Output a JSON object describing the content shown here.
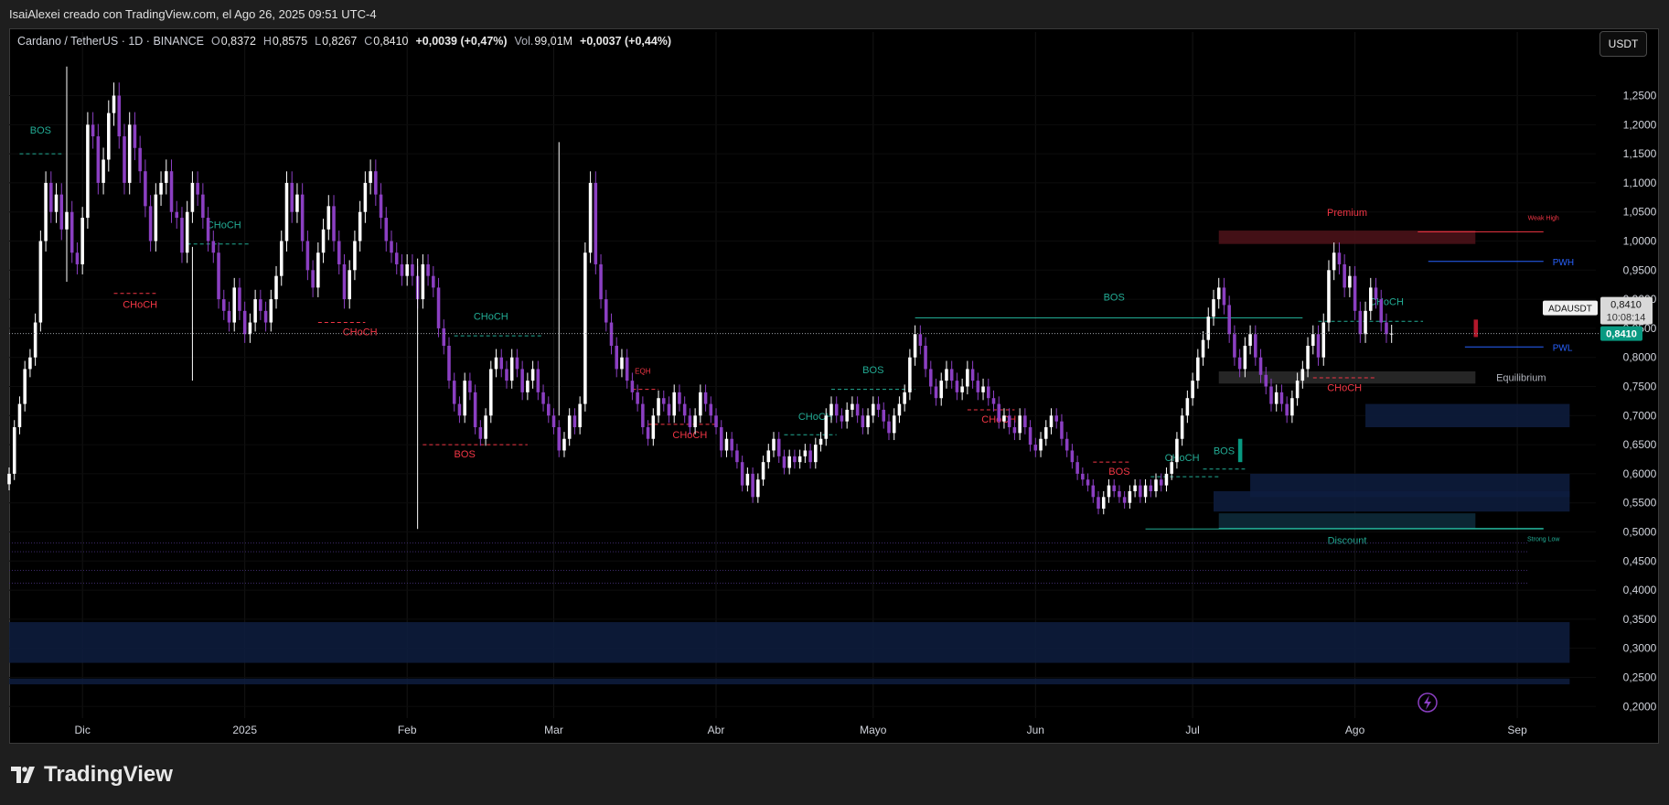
{
  "header": {
    "credit": "IsaiAlexei creado con TradingView.com, el Ago 26, 2025 09:51 UTC-4"
  },
  "legend": {
    "symbol": "Cardano / TetherUS · 1D · BINANCE",
    "open_label": "O",
    "open": "0,8372",
    "high_label": "H",
    "high": "0,8575",
    "low_label": "L",
    "low": "0,8267",
    "close_label": "C",
    "close": "0,8410",
    "change": "+0,0039 (+0,47%)",
    "vol_label": "Vol.",
    "vol": "99,01M",
    "vol_change": "+0,0037 (+0,44%)"
  },
  "currency_button": "USDT",
  "brand": "TradingView",
  "colors": {
    "candle_up": "#ffffff",
    "candle_down": "#8b3fc2",
    "bullish_label": "#22ab94",
    "bearish_label": "#f23645",
    "premium_zone": "#4a1218",
    "discount_zone": "#0d2a3a",
    "order_block": "#0e1d3f",
    "equilibrium_zone": "#2a2a2a",
    "last_price_tag": "#089981"
  },
  "price_scale": {
    "labels": [
      "1,2500",
      "1,2000",
      "1,1500",
      "1,1000",
      "1,0500",
      "1,0000",
      "0,9500",
      "0,9000",
      "0,8500",
      "0,8000",
      "0,7500",
      "0,7000",
      "0,6500",
      "0,6000",
      "0,5500",
      "0,5000",
      "0,4500",
      "0,4000",
      "0,3500",
      "0,3000",
      "0,2500",
      "0,2000"
    ],
    "last_price": "0,8410",
    "countdown": "10:08:14",
    "symbol_tag": "ADAUSDT",
    "symbol_price": "0,8410"
  },
  "time_axis": {
    "labels": [
      "Dic",
      "2025",
      "Feb",
      "Mar",
      "Abr",
      "Mayo",
      "Jun",
      "Jul",
      "Ago",
      "Sep"
    ]
  },
  "chart_data": {
    "type": "candlestick",
    "title": "Cardano / TetherUS · 1D · BINANCE",
    "ylim": [
      0.18,
      1.32
    ],
    "y_ticks": [
      1.25,
      1.2,
      1.15,
      1.1,
      1.05,
      1.0,
      0.95,
      0.9,
      0.85,
      0.8,
      0.75,
      0.7,
      0.65,
      0.6,
      0.55,
      0.5,
      0.45,
      0.4,
      0.35,
      0.3,
      0.25,
      0.2
    ],
    "x_start": "2024-11-17",
    "x_end": "2025-09-16",
    "month_ticks": [
      {
        "date": "2024-12-01",
        "label": "Dic"
      },
      {
        "date": "2025-01-01",
        "label": "2025"
      },
      {
        "date": "2025-02-01",
        "label": "Feb"
      },
      {
        "date": "2025-03-01",
        "label": "Mar"
      },
      {
        "date": "2025-04-01",
        "label": "Abr"
      },
      {
        "date": "2025-05-01",
        "label": "Mayo"
      },
      {
        "date": "2025-06-01",
        "label": "Jun"
      },
      {
        "date": "2025-07-01",
        "label": "Jul"
      },
      {
        "date": "2025-08-01",
        "label": "Ago"
      },
      {
        "date": "2025-09-01",
        "label": "Sep"
      }
    ],
    "close_series": {
      "start": "2024-11-17",
      "values": [
        0.6,
        0.68,
        0.72,
        0.78,
        0.8,
        0.86,
        1.0,
        1.1,
        1.05,
        1.08,
        1.02,
        1.05,
        0.98,
        0.96,
        1.04,
        1.2,
        1.18,
        1.1,
        1.14,
        1.22,
        1.25,
        1.18,
        1.1,
        1.2,
        1.16,
        1.12,
        1.06,
        1.0,
        1.08,
        1.1,
        1.12,
        1.05,
        1.04,
        0.98,
        1.05,
        1.1,
        1.08,
        1.04,
        1.0,
        0.98,
        0.9,
        0.88,
        0.86,
        0.92,
        0.88,
        0.84,
        0.86,
        0.9,
        0.88,
        0.86,
        0.9,
        0.94,
        1.0,
        1.1,
        1.05,
        1.08,
        1.0,
        0.95,
        0.92,
        0.98,
        1.02,
        1.06,
        1.0,
        0.96,
        0.9,
        0.95,
        1.0,
        1.05,
        1.1,
        1.12,
        1.08,
        1.04,
        1.0,
        0.98,
        0.96,
        0.94,
        0.96,
        0.94,
        0.9,
        0.96,
        0.94,
        0.92,
        0.85,
        0.82,
        0.76,
        0.72,
        0.7,
        0.76,
        0.74,
        0.68,
        0.66,
        0.7,
        0.78,
        0.8,
        0.78,
        0.76,
        0.8,
        0.78,
        0.74,
        0.76,
        0.78,
        0.74,
        0.72,
        0.7,
        0.68,
        0.64,
        0.66,
        0.7,
        0.68,
        0.72,
        0.98,
        1.1,
        0.96,
        0.9,
        0.86,
        0.82,
        0.78,
        0.8,
        0.76,
        0.74,
        0.72,
        0.68,
        0.66,
        0.7,
        0.73,
        0.72,
        0.7,
        0.74,
        0.72,
        0.7,
        0.68,
        0.7,
        0.74,
        0.72,
        0.7,
        0.68,
        0.64,
        0.66,
        0.64,
        0.62,
        0.58,
        0.6,
        0.56,
        0.59,
        0.62,
        0.64,
        0.66,
        0.63,
        0.61,
        0.63,
        0.62,
        0.63,
        0.64,
        0.62,
        0.65,
        0.66,
        0.7,
        0.72,
        0.7,
        0.69,
        0.71,
        0.72,
        0.7,
        0.68,
        0.7,
        0.72,
        0.71,
        0.69,
        0.67,
        0.7,
        0.72,
        0.74,
        0.8,
        0.84,
        0.82,
        0.78,
        0.75,
        0.73,
        0.76,
        0.78,
        0.76,
        0.74,
        0.75,
        0.78,
        0.76,
        0.74,
        0.75,
        0.73,
        0.72,
        0.69,
        0.7,
        0.68,
        0.67,
        0.7,
        0.68,
        0.65,
        0.64,
        0.66,
        0.68,
        0.7,
        0.69,
        0.66,
        0.64,
        0.62,
        0.6,
        0.59,
        0.58,
        0.56,
        0.54,
        0.56,
        0.58,
        0.57,
        0.56,
        0.55,
        0.57,
        0.58,
        0.56,
        0.58,
        0.57,
        0.59,
        0.58,
        0.6,
        0.62,
        0.66,
        0.7,
        0.73,
        0.76,
        0.8,
        0.83,
        0.87,
        0.9,
        0.92,
        0.89,
        0.84,
        0.8,
        0.78,
        0.82,
        0.84,
        0.8,
        0.77,
        0.75,
        0.72,
        0.74,
        0.72,
        0.7,
        0.73,
        0.76,
        0.78,
        0.82,
        0.84,
        0.8,
        0.86,
        0.95,
        0.98,
        0.96,
        0.92,
        0.94,
        0.88,
        0.84,
        0.88,
        0.92,
        0.9,
        0.86,
        0.84,
        0.841
      ]
    },
    "series": [
      {
        "values": []
      }
    ],
    "zones": [
      {
        "label": "Premium",
        "type": "premium",
        "from": "2025-07-06",
        "to": "2025-08-24",
        "y_low": 0.995,
        "y_high": 1.018
      },
      {
        "label": "Equilibrium",
        "type": "equilibrium",
        "from": "2025-07-06",
        "to": "2025-08-24",
        "y_low": 0.755,
        "y_high": 0.776
      },
      {
        "label": "Discount",
        "type": "discount",
        "from": "2025-07-06",
        "to": "2025-08-24",
        "y_low": 0.506,
        "y_high": 0.532
      },
      {
        "label": "",
        "type": "orderblock",
        "from": "2025-08-03",
        "to": "2025-09-11",
        "y_low": 0.68,
        "y_high": 0.72
      },
      {
        "label": "",
        "type": "orderblock",
        "from": "2025-07-12",
        "to": "2025-09-11",
        "y_low": 0.56,
        "y_high": 0.6
      },
      {
        "label": "",
        "type": "orderblock",
        "from": "2025-07-05",
        "to": "2025-09-11",
        "y_low": 0.535,
        "y_high": 0.57
      },
      {
        "label": "",
        "type": "orderblock",
        "from": "2024-11-17",
        "to": "2025-09-11",
        "y_low": 0.275,
        "y_high": 0.345
      },
      {
        "label": "",
        "type": "orderblock",
        "from": "2024-11-17",
        "to": "2025-09-11",
        "y_low": 0.238,
        "y_high": 0.248
      }
    ],
    "levels": [
      {
        "label": "Weak High",
        "value": 1.016,
        "from": "2025-08-13",
        "to": "2025-09-06",
        "color": "#f23645"
      },
      {
        "label": "PWH",
        "value": 0.965,
        "from": "2025-08-15",
        "to": "2025-09-06",
        "color": "#2962ff"
      },
      {
        "label": "PWL",
        "value": 0.818,
        "from": "2025-08-22",
        "to": "2025-09-06",
        "color": "#2962ff"
      },
      {
        "label": "Strong Low",
        "value": 0.505,
        "from": "2025-06-22",
        "to": "2025-09-06",
        "color": "#22ab94"
      }
    ],
    "structure": [
      {
        "label": "BOS",
        "type": "bull",
        "from": "2024-11-19",
        "to": "2024-11-27",
        "y": 1.15,
        "text_date": "2024-11-23",
        "text_y": 1.185
      },
      {
        "label": "CHoCH",
        "type": "bear",
        "from": "2024-12-07",
        "to": "2024-12-15",
        "y": 0.91,
        "text_date": "2024-12-12",
        "text_y": 0.885
      },
      {
        "label": "CHoCH",
        "type": "bull",
        "from": "2024-12-21",
        "to": "2025-01-02",
        "y": 0.995,
        "text_date": "2024-12-28",
        "text_y": 1.022
      },
      {
        "label": "CHoCH",
        "type": "bear",
        "from": "2025-01-15",
        "to": "2025-01-24",
        "y": 0.86,
        "text_date": "2025-01-23",
        "text_y": 0.838
      },
      {
        "label": "CHoCH",
        "type": "bull",
        "from": "2025-02-10",
        "to": "2025-02-27",
        "y": 0.837,
        "text_date": "2025-02-17",
        "text_y": 0.865
      },
      {
        "label": "BOS",
        "type": "bear",
        "from": "2025-02-04",
        "to": "2025-02-24",
        "y": 0.65,
        "text_date": "2025-02-12",
        "text_y": 0.628
      },
      {
        "label": "EQH",
        "type": "bear",
        "from": "2025-03-16",
        "to": "2025-03-21",
        "y": 0.745,
        "text_date": "2025-03-18",
        "text_y": 0.772
      },
      {
        "label": "CHoCH",
        "type": "bear",
        "from": "2025-03-19",
        "to": "2025-04-01",
        "y": 0.685,
        "text_date": "2025-03-27",
        "text_y": 0.661
      },
      {
        "label": "CHoCH",
        "type": "bull",
        "from": "2025-04-14",
        "to": "2025-04-24",
        "y": 0.667,
        "text_date": "2025-04-20",
        "text_y": 0.693
      },
      {
        "label": "BOS",
        "type": "bull",
        "from": "2025-04-23",
        "to": "2025-05-09",
        "y": 0.745,
        "text_date": "2025-05-01",
        "text_y": 0.773
      },
      {
        "label": "CHoCH",
        "type": "bear",
        "from": "2025-05-19",
        "to": "2025-05-28",
        "y": 0.71,
        "text_date": "2025-05-25",
        "text_y": 0.688
      },
      {
        "label": "BOS",
        "type": "bull",
        "from": "2025-05-09",
        "to": "2025-07-22",
        "y": 0.868,
        "text_date": "2025-06-16",
        "text_y": 0.898
      },
      {
        "label": "BOS",
        "type": "bear",
        "from": "2025-06-12",
        "to": "2025-06-19",
        "y": 0.62,
        "text_date": "2025-06-17",
        "text_y": 0.598
      },
      {
        "label": "CHoCH",
        "type": "bull",
        "from": "2025-06-23",
        "to": "2025-07-06",
        "y": 0.595,
        "text_date": "2025-06-29",
        "text_y": 0.622
      },
      {
        "label": "BOS",
        "type": "bull",
        "from": "2025-07-03",
        "to": "2025-07-11",
        "y": 0.608,
        "text_date": "2025-07-07",
        "text_y": 0.634
      },
      {
        "label": "CHoCH",
        "type": "bull",
        "from": "2025-07-25",
        "to": "2025-08-14",
        "y": 0.862,
        "text_date": "2025-08-07",
        "text_y": 0.89
      },
      {
        "label": "CHoCH",
        "type": "bear",
        "from": "2025-07-24",
        "to": "2025-08-05",
        "y": 0.765,
        "text_date": "2025-07-30",
        "text_y": 0.742
      }
    ],
    "dotted_levels": [
      0.481,
      0.466,
      0.434,
      0.412
    ]
  }
}
